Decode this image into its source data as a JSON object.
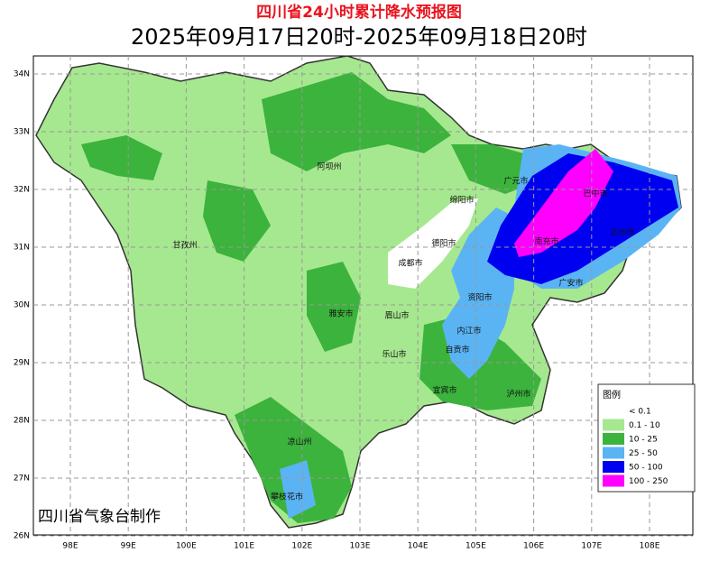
{
  "header": {
    "title": "四川省24小时累计降水预报图",
    "subtitle": "2025年09月17日20时-2025年09月18日20时"
  },
  "axes": {
    "x_ticks": [
      "98E",
      "99E",
      "100E",
      "101E",
      "102E",
      "103E",
      "104E",
      "105E",
      "106E",
      "107E",
      "108E"
    ],
    "y_ticks": [
      "34N",
      "33N",
      "32N",
      "31N",
      "30N",
      "29N",
      "28N",
      "27N",
      "26N"
    ]
  },
  "cities": [
    "阿坝州",
    "甘孜州",
    "绵阳市",
    "广元市",
    "巴中市",
    "德阳市",
    "南充市",
    "达州市",
    "成都市",
    "广安市",
    "资阳市",
    "雅安市",
    "眉山市",
    "内江市",
    "自贡市",
    "乐山市",
    "宜宾市",
    "泸州市",
    "凉山州",
    "攀枝花市"
  ],
  "legend": {
    "title": "图例",
    "items": [
      {
        "label": "< 0.1",
        "color": "#ffffff"
      },
      {
        "label": "0.1 - 10",
        "color": "#a6e88f"
      },
      {
        "label": "10 - 25",
        "color": "#3cb33c"
      },
      {
        "label": "25 - 50",
        "color": "#5ab4f4"
      },
      {
        "label": "50 - 100",
        "color": "#0000f0"
      },
      {
        "label": "100 - 250",
        "color": "#ff00ff"
      }
    ]
  },
  "credit": "四川省气象台制作"
}
